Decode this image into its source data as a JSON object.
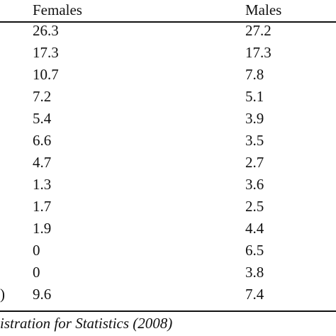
{
  "table": {
    "headers": {
      "females": "Females",
      "males": "Males"
    },
    "rows": [
      {
        "females": "26.3",
        "males": "27.2"
      },
      {
        "females": "17.3",
        "males": "17.3"
      },
      {
        "females": "10.7",
        "males": "7.8"
      },
      {
        "females": "7.2",
        "males": "5.1"
      },
      {
        "females": "5.4",
        "males": "3.9"
      },
      {
        "females": "6.6",
        "males": "3.5"
      },
      {
        "females": "4.7",
        "males": "2.7"
      },
      {
        "females": "1.3",
        "males": "3.6"
      },
      {
        "females": "1.7",
        "males": "2.5"
      },
      {
        "females": "1.9",
        "males": "4.4"
      },
      {
        "females": "0",
        "males": "6.5"
      },
      {
        "females": "0",
        "males": "3.8"
      },
      {
        "females": "9.6",
        "males": "7.4"
      }
    ],
    "last_row_label_fragment": ")"
  },
  "source_note": "istration for Statistics (2008)"
}
